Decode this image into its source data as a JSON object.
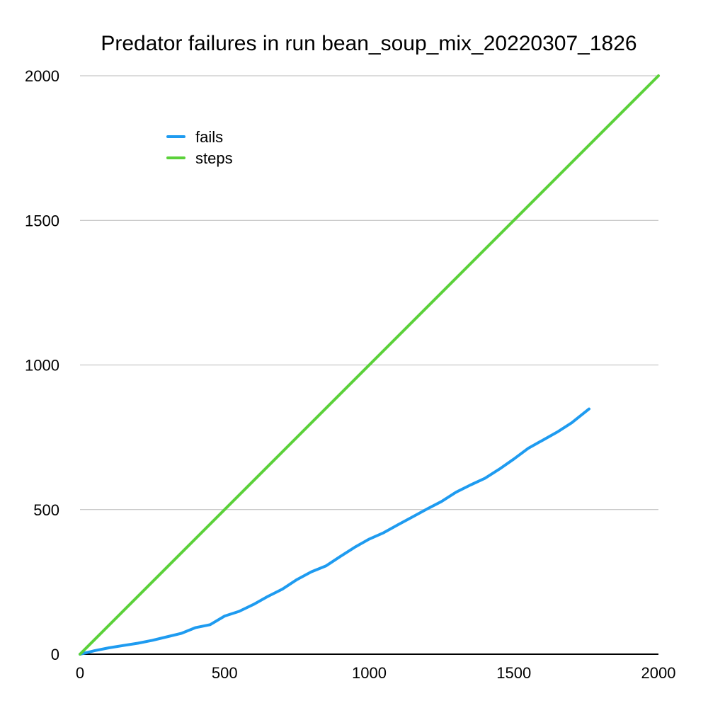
{
  "chart_data": {
    "type": "line",
    "title": "Predator failures in run bean_soup_mix_20220307_1826",
    "xlabel": "",
    "ylabel": "",
    "xlim": [
      0,
      2000
    ],
    "ylim": [
      0,
      2000
    ],
    "x_ticks": [
      "0",
      "500",
      "1000",
      "1500",
      "2000"
    ],
    "y_ticks": [
      "0",
      "500",
      "1000",
      "1500",
      "2000"
    ],
    "grid": "horizontal",
    "legend_position": "top-left",
    "series": [
      {
        "name": "fails",
        "color": "#1e9bf0",
        "x": [
          0,
          50,
          100,
          150,
          200,
          250,
          300,
          350,
          400,
          450,
          500,
          550,
          600,
          650,
          700,
          750,
          800,
          850,
          900,
          950,
          1000,
          1050,
          1100,
          1150,
          1200,
          1250,
          1300,
          1350,
          1400,
          1450,
          1500,
          1550,
          1600,
          1650,
          1700,
          1760
        ],
        "y": [
          0,
          12,
          22,
          30,
          38,
          48,
          60,
          72,
          92,
          102,
          132,
          148,
          172,
          200,
          225,
          258,
          285,
          305,
          338,
          370,
          398,
          420,
          448,
          475,
          502,
          528,
          560,
          585,
          608,
          640,
          675,
          712,
          740,
          768,
          800,
          848
        ]
      },
      {
        "name": "steps",
        "color": "#5bd13a",
        "x": [
          0,
          2000
        ],
        "y": [
          0,
          2000
        ]
      }
    ]
  }
}
